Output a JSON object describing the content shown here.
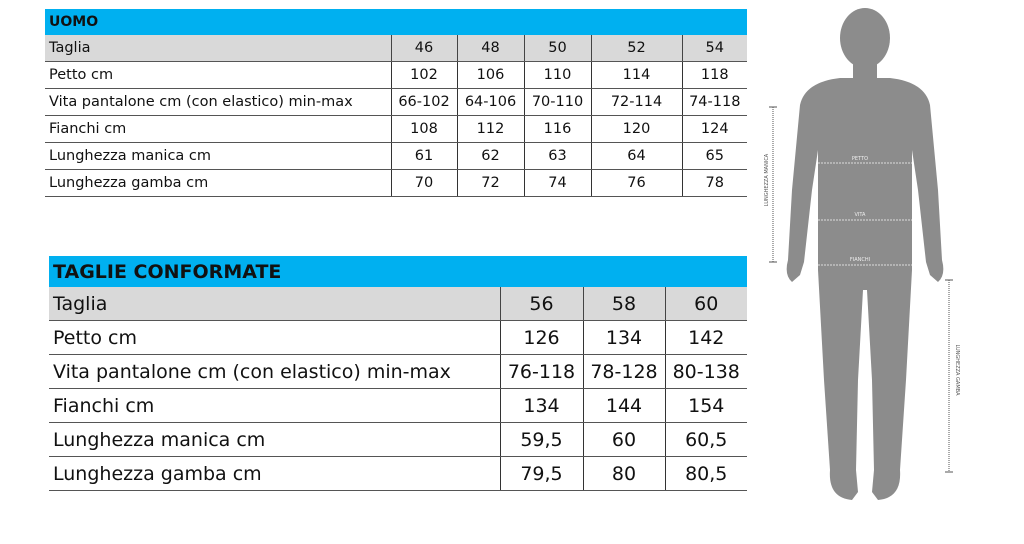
{
  "uomo": {
    "title": "UOMO",
    "size_label": "Taglia",
    "sizes": [
      "46",
      "48",
      "50",
      "52",
      "54"
    ],
    "rows": [
      {
        "label": "Petto cm",
        "values": [
          "102",
          "106",
          "110",
          "114",
          "118"
        ]
      },
      {
        "label": "Vita pantalone cm (con elastico) min-max",
        "values": [
          "66-102",
          "64-106",
          "70-110",
          "72-114",
          "74-118"
        ]
      },
      {
        "label": "Fianchi cm",
        "values": [
          "108",
          "112",
          "116",
          "120",
          "124"
        ]
      },
      {
        "label": "Lunghezza manica cm",
        "values": [
          "61",
          "62",
          "63",
          "64",
          "65"
        ]
      },
      {
        "label": "Lunghezza gamba cm",
        "values": [
          "70",
          "72",
          "74",
          "76",
          "78"
        ]
      }
    ]
  },
  "conformate": {
    "title": "TAGLIE CONFORMATE",
    "size_label": "Taglia",
    "sizes": [
      "56",
      "58",
      "60"
    ],
    "rows": [
      {
        "label": "Petto cm",
        "values": [
          "126",
          "134",
          "142"
        ]
      },
      {
        "label": "Vita pantalone cm (con elastico) min-max",
        "values": [
          "76-118",
          "78-128",
          "80-138"
        ]
      },
      {
        "label": "Fianchi cm",
        "values": [
          "134",
          "144",
          "154"
        ]
      },
      {
        "label": "Lunghezza manica cm",
        "values": [
          "59,5",
          "60",
          "60,5"
        ]
      },
      {
        "label": "Lunghezza gamba cm",
        "values": [
          "79,5",
          "80",
          "80,5"
        ]
      }
    ]
  },
  "figure": {
    "petto": "PETTO",
    "vita": "VITA",
    "fianchi": "FIANCHI",
    "lunghezza_manica": "LUNGHEZZA MANICA",
    "lunghezza_gamba": "LUNGHEZZA GAMBA"
  },
  "colors": {
    "header": "#00b0f0",
    "size_row": "#d9d9d9",
    "silhouette": "#8c8c8c"
  }
}
